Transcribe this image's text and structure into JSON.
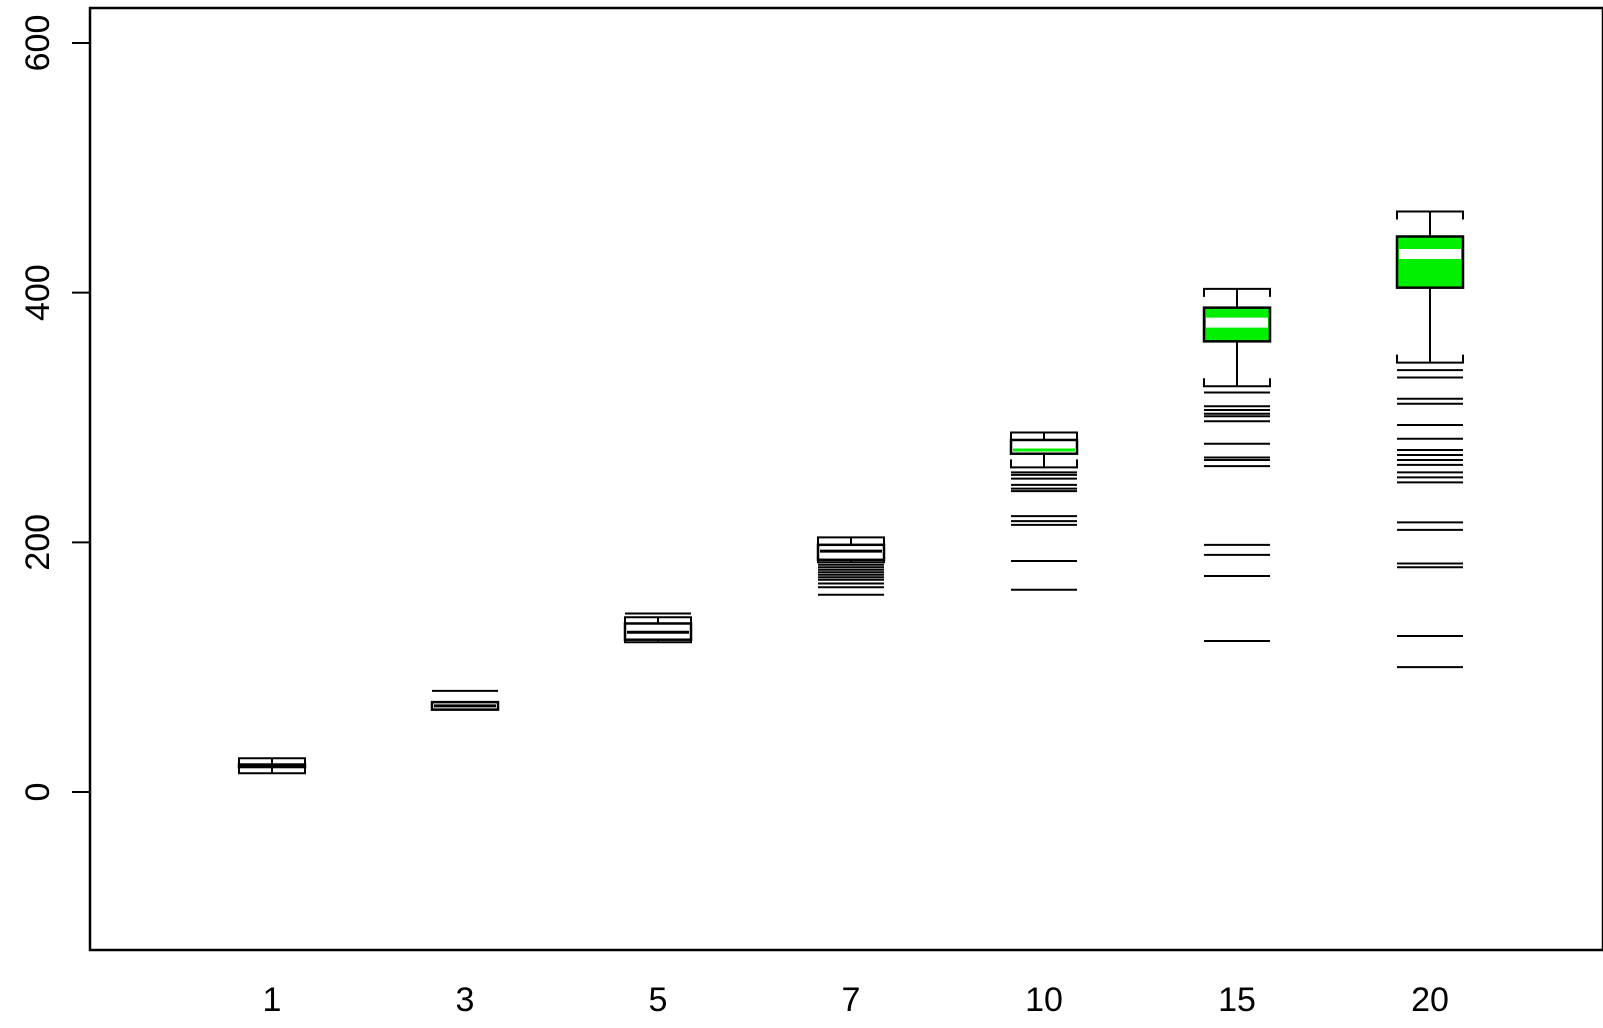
{
  "chart_data": {
    "type": "boxplot",
    "title": "",
    "xlabel": "",
    "ylabel": "",
    "ylim": [
      -128,
      628
    ],
    "y_ticks": [
      "0",
      "200",
      "400",
      "600"
    ],
    "y_tick_values": [
      0,
      200,
      400,
      600
    ],
    "categories": [
      "1",
      "3",
      "5",
      "7",
      "10",
      "15",
      "20"
    ],
    "box_fill": [
      "#ffffff",
      "#ffffff",
      "#ffffff",
      "#ffffff",
      "#ffffff",
      "#00ee00",
      "#00ee00"
    ],
    "median_color": [
      "#000000",
      "#000000",
      "#000000",
      "#000000",
      "#00ee00",
      "#ffffff",
      "#ffffff"
    ],
    "boxes": [
      {
        "label": "1",
        "whisker_low": 15,
        "q1": 20,
        "median": 21,
        "q3": 22,
        "whisker_high": 27,
        "outliers": []
      },
      {
        "label": "3",
        "whisker_low": 66,
        "q1": 66,
        "median": 69,
        "q3": 72,
        "whisker_high": 72,
        "outliers": [
          81
        ]
      },
      {
        "label": "5",
        "whisker_low": 120,
        "q1": 122,
        "median": 128,
        "q3": 135,
        "whisker_high": 140,
        "outliers": [
          143
        ]
      },
      {
        "label": "7",
        "whisker_low": 184,
        "q1": 186,
        "median": 193,
        "q3": 198,
        "whisker_high": 204,
        "outliers": [
          158,
          164,
          167,
          170,
          172,
          174,
          176,
          178,
          180,
          182
        ]
      },
      {
        "label": "10",
        "whisker_low": 260,
        "q1": 271,
        "median": 274,
        "q3": 282,
        "whisker_high": 288,
        "outliers": [
          162,
          185,
          214,
          217,
          221,
          241,
          243,
          246,
          251,
          254,
          256
        ]
      },
      {
        "label": "15",
        "whisker_low": 325,
        "q1": 361,
        "median": 376,
        "q3": 388,
        "whisker_high": 403,
        "outliers": [
          121,
          173,
          190,
          198,
          261,
          266,
          268,
          279,
          297,
          301,
          303,
          306,
          309,
          320
        ]
      },
      {
        "label": "20",
        "whisker_low": 344,
        "q1": 404,
        "median": 431,
        "q3": 445,
        "whisker_high": 465,
        "outliers": [
          100,
          125,
          180,
          183,
          210,
          216,
          248,
          252,
          256,
          262,
          266,
          270,
          274,
          283,
          294,
          311,
          315,
          332,
          338
        ]
      }
    ],
    "grid": false,
    "legend": "none"
  }
}
